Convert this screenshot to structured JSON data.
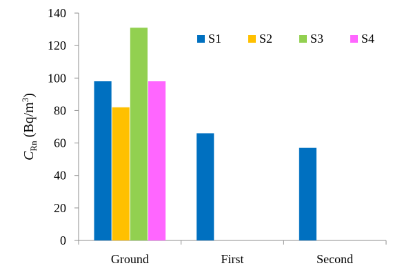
{
  "chart_data": {
    "type": "bar",
    "categories": [
      "Ground",
      "First",
      "Second"
    ],
    "series": [
      {
        "name": "S1",
        "color": "#0070C0",
        "values": [
          98,
          66,
          57
        ]
      },
      {
        "name": "S2",
        "color": "#FFC000",
        "values": [
          82,
          null,
          null
        ]
      },
      {
        "name": "S3",
        "color": "#92D050",
        "values": [
          131,
          null,
          null
        ]
      },
      {
        "name": "S4",
        "color": "#FF66FF",
        "values": [
          98,
          null,
          null
        ]
      }
    ],
    "ylabel": {
      "var": "C",
      "sub": "Rn",
      "unit_prefix": " (Bq/m",
      "unit_sup": "3",
      "unit_suffix": ")"
    },
    "ylim": [
      0,
      140
    ],
    "yticks": [
      0,
      20,
      40,
      60,
      80,
      100,
      120,
      140
    ],
    "grid": false,
    "legend": "top-right"
  }
}
